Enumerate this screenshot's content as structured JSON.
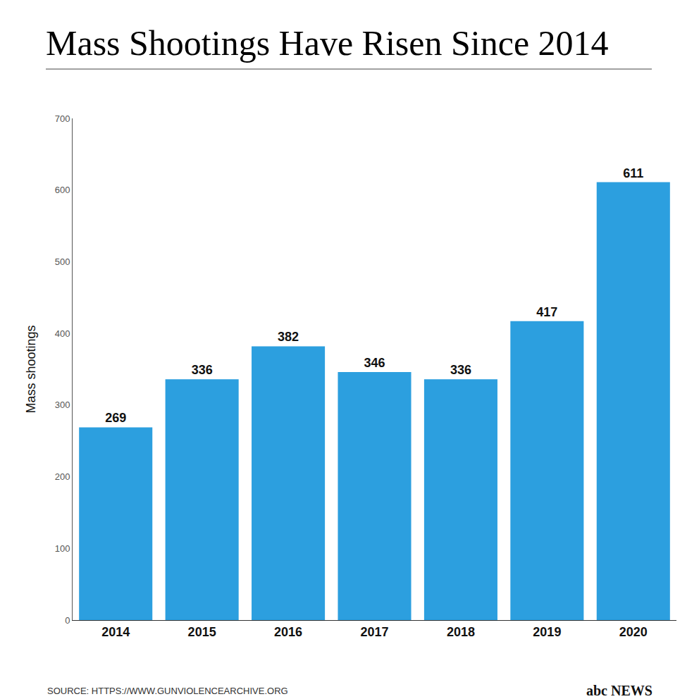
{
  "chart_data": {
    "type": "bar",
    "title": "Mass Shootings Have Risen Since 2014",
    "y_label": "Mass shootings",
    "categories": [
      "2014",
      "2015",
      "2016",
      "2017",
      "2018",
      "2019",
      "2020"
    ],
    "values": [
      269,
      336,
      382,
      346,
      336,
      417,
      611
    ],
    "color": "#2c9fdf",
    "ylim": [
      0,
      700
    ],
    "yticks": [
      0,
      100,
      200,
      300,
      400,
      500,
      600,
      700
    ],
    "grid": false,
    "data_labels": true,
    "annotations": [
      "SOURCE: HTTPS://WWW.GUNVIOLENCEARCHIVE.ORG",
      "abc NEWS"
    ]
  }
}
